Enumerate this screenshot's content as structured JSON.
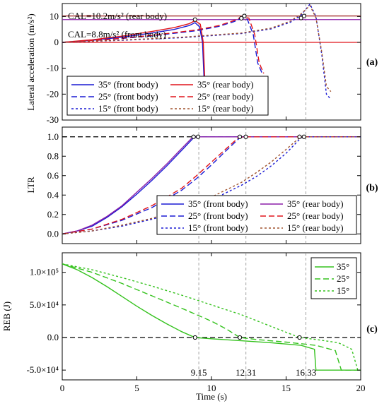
{
  "colors": {
    "blue": "#1a1ad4",
    "purple": "#8b1fa9",
    "red": "#e0141b",
    "darkred": "#9b1a1a",
    "brown": "#a0522d",
    "green": "#35c21e",
    "black": "#000000",
    "grey": "#8c8c8c"
  },
  "chart_data": [
    {
      "type": "line",
      "panel_label": "(a)",
      "ylabel": "Lateral acceleration (m/s²)",
      "xlim": [
        0,
        20
      ],
      "ylim": [
        -30,
        15
      ],
      "yticks": [
        -30,
        -20,
        -10,
        0,
        10
      ],
      "annotations": [
        "CAL=10.2m/s²  (rear body)",
        "CAL=8.8m/s²  (front body)"
      ],
      "reference_lines": [
        10.2,
        8.8
      ],
      "legend": {
        "rows": [
          [
            "35° (front body)",
            "35° (rear body)"
          ],
          [
            "25° (front body)",
            "25° (rear body)"
          ],
          [
            "15° (front body)",
            "15° (rear body)"
          ]
        ]
      },
      "series": [
        {
          "name": "35° (front body)",
          "x": [
            0,
            2,
            4,
            6,
            7.5,
            8.5,
            8.9,
            9.2,
            9.4,
            9.6
          ],
          "y": [
            0,
            0.8,
            2.0,
            3.6,
            5.0,
            6.5,
            7.6,
            6.0,
            0,
            -28
          ]
        },
        {
          "name": "35° (rear body)",
          "x": [
            0,
            2,
            4,
            6,
            7.5,
            8.5,
            8.9,
            9.25,
            9.45,
            9.65
          ],
          "y": [
            0,
            1.0,
            2.4,
            4.2,
            5.7,
            7.2,
            8.4,
            7.0,
            0,
            -28
          ]
        },
        {
          "name": "25° (front body)",
          "x": [
            0,
            3,
            6,
            9,
            10.5,
            11.5,
            12.0,
            12.4,
            12.8,
            13.1,
            13.4
          ],
          "y": [
            0,
            1.0,
            2.5,
            4.5,
            6.2,
            8.0,
            9.3,
            9.0,
            3.0,
            -8.0,
            -12.0
          ]
        },
        {
          "name": "25° (rear body)",
          "x": [
            0,
            3,
            6,
            9,
            10.5,
            11.5,
            12.0,
            12.5,
            12.9,
            13.2,
            13.5
          ],
          "y": [
            0,
            1.1,
            2.7,
            4.8,
            6.5,
            8.4,
            9.8,
            9.4,
            3.0,
            -8.0,
            -12.0
          ]
        },
        {
          "name": "15° (front body)",
          "x": [
            0,
            4,
            8,
            12,
            14,
            15.3,
            16.0,
            16.6,
            17.0,
            17.4,
            17.7,
            18.0
          ],
          "y": [
            0,
            0.8,
            1.8,
            3.4,
            5.2,
            7.8,
            10.5,
            14.8,
            10.0,
            -5.0,
            -20.0,
            -22.0
          ]
        },
        {
          "name": "15° (rear body)",
          "x": [
            0,
            4,
            8,
            12,
            14,
            15.3,
            16.0,
            16.6,
            17.0,
            17.4,
            17.7,
            18.0
          ],
          "y": [
            0,
            0.9,
            2.0,
            3.6,
            5.5,
            8.2,
            11.0,
            14.2,
            9.5,
            -4.0,
            -17.0,
            -19.0
          ]
        }
      ]
    },
    {
      "type": "line",
      "panel_label": "(b)",
      "ylabel": "LTR",
      "xlim": [
        0,
        20
      ],
      "ylim": [
        -0.1,
        1.1
      ],
      "yticks": [
        0.0,
        0.2,
        0.4,
        0.6,
        0.8,
        1.0
      ],
      "reference_lines": [
        1.0
      ],
      "legend": {
        "rows": [
          [
            "35° (front body)",
            "35° (rear body)"
          ],
          [
            "25° (front body)",
            "25° (rear body)"
          ],
          [
            "15° (front body)",
            "15° (rear body)"
          ]
        ]
      },
      "series": [
        {
          "name": "35° (front body)",
          "x": [
            0,
            1,
            2,
            3,
            4,
            5,
            6,
            7,
            8,
            8.8,
            9.2,
            20
          ],
          "y": [
            0,
            0.03,
            0.08,
            0.17,
            0.28,
            0.41,
            0.55,
            0.7,
            0.86,
            0.99,
            1.0,
            1.0
          ]
        },
        {
          "name": "35° (rear body)",
          "x": [
            0,
            1,
            2,
            3,
            4,
            5,
            6,
            7,
            8,
            8.7,
            9.1,
            20
          ],
          "y": [
            0,
            0.03,
            0.09,
            0.18,
            0.29,
            0.43,
            0.57,
            0.72,
            0.88,
            0.99,
            1.0,
            1.0
          ]
        },
        {
          "name": "25° (front body)",
          "x": [
            0,
            2,
            4,
            6,
            8,
            9,
            10,
            11,
            11.9,
            12.3,
            20
          ],
          "y": [
            0,
            0.05,
            0.14,
            0.27,
            0.45,
            0.57,
            0.71,
            0.86,
            0.99,
            1.0,
            1.0
          ]
        },
        {
          "name": "25° (rear body)",
          "x": [
            0,
            2,
            4,
            6,
            8,
            9,
            10,
            11,
            11.8,
            12.2,
            20
          ],
          "y": [
            0,
            0.05,
            0.15,
            0.29,
            0.47,
            0.6,
            0.74,
            0.88,
            0.99,
            1.0,
            1.0
          ]
        },
        {
          "name": "15° (front body)",
          "x": [
            0,
            2,
            4,
            6,
            8,
            10,
            12,
            13,
            14,
            15,
            16.0,
            16.3,
            20
          ],
          "y": [
            0,
            0.03,
            0.08,
            0.15,
            0.24,
            0.35,
            0.5,
            0.59,
            0.7,
            0.83,
            0.99,
            1.0,
            1.0
          ]
        },
        {
          "name": "15° (rear body)",
          "x": [
            0,
            2,
            4,
            6,
            8,
            10,
            12,
            13,
            14,
            15,
            15.9,
            16.2,
            20
          ],
          "y": [
            0,
            0.03,
            0.09,
            0.16,
            0.26,
            0.38,
            0.53,
            0.63,
            0.74,
            0.87,
            0.99,
            1.0,
            1.0
          ]
        }
      ]
    },
    {
      "type": "line",
      "panel_label": "(c)",
      "ylabel": "REB (J)",
      "xlabel": "Time (s)",
      "xlim": [
        0,
        20
      ],
      "xticks": [
        0,
        5,
        10,
        15,
        20
      ],
      "ylim": [
        -65000,
        130000
      ],
      "yticks": [
        "-5.0×10⁴",
        "0.0",
        "5.0×10⁴",
        "1.0×10⁵"
      ],
      "ytick_values": [
        -50000,
        0,
        50000,
        100000
      ],
      "reference_lines": [
        0
      ],
      "vlines": [
        9.15,
        12.31,
        16.33
      ],
      "vline_labels": [
        "9.15",
        "12.31",
        "16.33"
      ],
      "legend": {
        "rows": [
          [
            "35°"
          ],
          [
            "25°"
          ],
          [
            "15°"
          ]
        ]
      },
      "series": [
        {
          "name": "35°",
          "x": [
            0,
            1,
            2,
            3,
            4,
            5,
            6,
            7,
            8,
            8.9,
            10,
            12,
            14,
            16,
            16.9,
            17.0,
            20
          ],
          "y": [
            113000,
            104000,
            92000,
            78000,
            63000,
            48000,
            34000,
            21000,
            9000,
            0,
            -2000,
            -5000,
            -8000,
            -12000,
            -18000,
            -50000,
            -50000
          ]
        },
        {
          "name": "25°",
          "x": [
            0,
            2,
            4,
            6,
            8,
            10,
            11,
            11.9,
            13,
            15,
            17,
            18.3,
            18.7,
            20
          ],
          "y": [
            113000,
            100000,
            83000,
            64000,
            45000,
            25000,
            13000,
            0,
            -3000,
            -7000,
            -12000,
            -20000,
            -50000,
            -50000
          ]
        },
        {
          "name": "15°",
          "x": [
            0,
            2,
            4,
            6,
            8,
            10,
            12,
            14,
            15.9,
            17,
            18.5,
            19.4,
            19.8,
            20
          ],
          "y": [
            113000,
            104000,
            92000,
            79000,
            65000,
            50000,
            35000,
            17000,
            0,
            -3000,
            -8000,
            -18000,
            -50000,
            -50000
          ]
        }
      ]
    }
  ]
}
